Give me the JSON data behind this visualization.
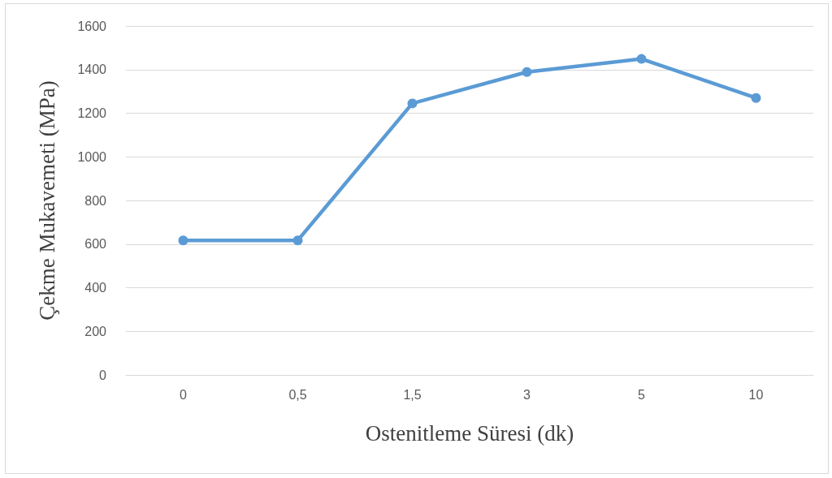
{
  "chart_data": {
    "type": "line",
    "xlabel": "Ostenitleme Süresi (dk)",
    "ylabel": "Çekme Mukavemeti (MPa)",
    "categories": [
      "0",
      "0,5",
      "1,5",
      "3",
      "5",
      "10"
    ],
    "series": [
      {
        "color": "#5b9bd5",
        "values": [
          617,
          617,
          1245,
          1389,
          1449,
          1270
        ]
      }
    ],
    "ylim": [
      0,
      1600
    ],
    "yticks": [
      0,
      200,
      400,
      600,
      800,
      1000,
      1200,
      1400,
      1600
    ],
    "grid": "y",
    "marker": "circle",
    "line_style": "solid"
  }
}
